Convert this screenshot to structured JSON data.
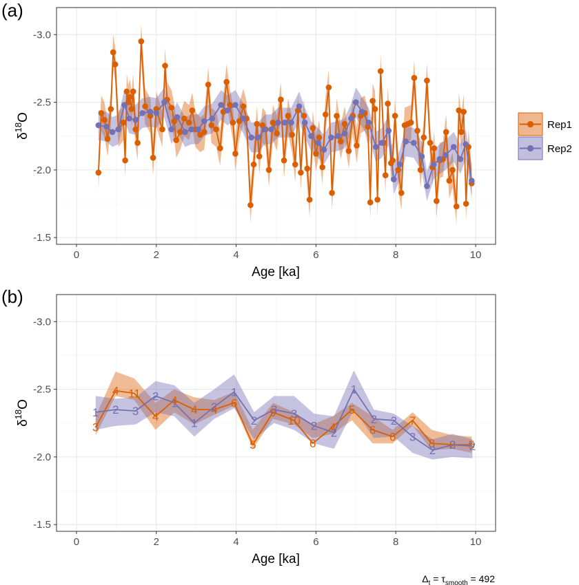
{
  "colors": {
    "Rep1": "#d95f02",
    "Rep2": "#7570b3"
  },
  "chart_data": [
    {
      "panel": "(a)",
      "type": "line",
      "xlabel": "Age [ka]",
      "ylabel_base": "δ",
      "ylabel_sup": "18",
      "ylabel_tail": "O",
      "xlim": [
        -0.5,
        10.5
      ],
      "ylim": [
        -1.45,
        -3.2
      ],
      "y_reversed": true,
      "xticks": [
        0,
        2,
        4,
        6,
        8,
        10
      ],
      "yticks": [
        -3.0,
        -2.5,
        -2.0,
        -1.5
      ],
      "ytick_labels": [
        "-3.0",
        "-2.5",
        "-2.0",
        "-1.5"
      ],
      "grid": true,
      "legend": "right",
      "series": [
        {
          "name": "Rep1",
          "band": 0.13,
          "points": [
            [
              0.55,
              -1.98
            ],
            [
              0.62,
              -2.42
            ],
            [
              0.7,
              -2.37
            ],
            [
              0.78,
              -2.23
            ],
            [
              0.86,
              -2.45
            ],
            [
              0.92,
              -2.87
            ],
            [
              0.97,
              -2.78
            ],
            [
              1.05,
              -2.3
            ],
            [
              1.18,
              -2.35
            ],
            [
              1.22,
              -2.07
            ],
            [
              1.26,
              -2.58
            ],
            [
              1.3,
              -2.5
            ],
            [
              1.34,
              -2.54
            ],
            [
              1.38,
              -2.45
            ],
            [
              1.42,
              -2.58
            ],
            [
              1.48,
              -2.3
            ],
            [
              1.53,
              -2.2
            ],
            [
              1.62,
              -2.95
            ],
            [
              1.72,
              -2.47
            ],
            [
              1.85,
              -2.4
            ],
            [
              1.92,
              -2.09
            ],
            [
              2.0,
              -2.45
            ],
            [
              2.15,
              -2.3
            ],
            [
              2.22,
              -2.77
            ],
            [
              2.27,
              -2.52
            ],
            [
              2.38,
              -2.46
            ],
            [
              2.45,
              -2.36
            ],
            [
              2.5,
              -2.22
            ],
            [
              2.6,
              -2.28
            ],
            [
              2.7,
              -2.38
            ],
            [
              2.82,
              -2.35
            ],
            [
              2.9,
              -2.44
            ],
            [
              2.98,
              -2.3
            ],
            [
              3.1,
              -2.26
            ],
            [
              3.2,
              -2.28
            ],
            [
              3.3,
              -2.63
            ],
            [
              3.38,
              -2.33
            ],
            [
              3.5,
              -2.3
            ],
            [
              3.6,
              -2.16
            ],
            [
              3.68,
              -2.43
            ],
            [
              3.76,
              -2.65
            ],
            [
              3.84,
              -2.48
            ],
            [
              3.92,
              -2.35
            ],
            [
              3.98,
              -2.12
            ],
            [
              4.08,
              -2.36
            ],
            [
              4.18,
              -2.47
            ],
            [
              4.26,
              -2.38
            ],
            [
              4.36,
              -1.74
            ],
            [
              4.44,
              -2.04
            ],
            [
              4.52,
              -2.34
            ],
            [
              4.58,
              -2.1
            ],
            [
              4.66,
              -2.33
            ],
            [
              4.74,
              -2.3
            ],
            [
              4.82,
              -2.0
            ],
            [
              4.92,
              -2.35
            ],
            [
              5.02,
              -2.27
            ],
            [
              5.12,
              -2.52
            ],
            [
              5.2,
              -2.07
            ],
            [
              5.3,
              -2.4
            ],
            [
              5.4,
              -2.26
            ],
            [
              5.48,
              -2.04
            ],
            [
              5.55,
              -2.44
            ],
            [
              5.62,
              -1.98
            ],
            [
              5.7,
              -2.4
            ],
            [
              5.78,
              -2.01
            ],
            [
              5.84,
              -1.78
            ],
            [
              5.92,
              -2.31
            ],
            [
              6.0,
              -2.12
            ],
            [
              6.08,
              -2.24
            ],
            [
              6.16,
              -2.02
            ],
            [
              6.24,
              -2.41
            ],
            [
              6.32,
              -2.61
            ],
            [
              6.4,
              -1.83
            ],
            [
              6.52,
              -2.4
            ],
            [
              6.62,
              -2.21
            ],
            [
              6.72,
              -2.34
            ],
            [
              6.82,
              -2.14
            ],
            [
              6.92,
              -2.4
            ],
            [
              7.02,
              -2.18
            ],
            [
              7.12,
              -2.4
            ],
            [
              7.22,
              -2.42
            ],
            [
              7.3,
              -2.32
            ],
            [
              7.36,
              -1.76
            ],
            [
              7.42,
              -2.51
            ],
            [
              7.48,
              -2.45
            ],
            [
              7.54,
              -1.78
            ],
            [
              7.62,
              -2.73
            ],
            [
              7.7,
              -2.2
            ],
            [
              7.74,
              -1.96
            ],
            [
              7.8,
              -2.49
            ],
            [
              7.88,
              -2.05
            ],
            [
              7.92,
              -2.07
            ],
            [
              7.98,
              -2.4
            ],
            [
              8.06,
              -2.0
            ],
            [
              8.14,
              -1.83
            ],
            [
              8.22,
              -2.33
            ],
            [
              8.3,
              -2.34
            ],
            [
              8.38,
              -2.35
            ],
            [
              8.46,
              -2.68
            ],
            [
              8.54,
              -2.29
            ],
            [
              8.62,
              -2.0
            ],
            [
              8.7,
              -2.24
            ],
            [
              8.78,
              -2.66
            ],
            [
              8.86,
              -2.2
            ],
            [
              8.92,
              -2.02
            ],
            [
              8.96,
              -2.16
            ],
            [
              9.02,
              -1.77
            ],
            [
              9.1,
              -2.07
            ],
            [
              9.18,
              -2.08
            ],
            [
              9.26,
              -2.28
            ],
            [
              9.34,
              -1.92
            ],
            [
              9.42,
              -2.0
            ],
            [
              9.52,
              -1.73
            ],
            [
              9.58,
              -2.44
            ],
            [
              9.64,
              -2.28
            ],
            [
              9.7,
              -2.43
            ],
            [
              9.76,
              -1.75
            ],
            [
              9.82,
              -2.17
            ],
            [
              9.9,
              -1.9
            ]
          ]
        },
        {
          "name": "Rep2",
          "band": 0.11,
          "points": [
            [
              0.55,
              -2.33
            ],
            [
              0.75,
              -2.32
            ],
            [
              0.9,
              -2.28
            ],
            [
              1.05,
              -2.3
            ],
            [
              1.2,
              -2.48
            ],
            [
              1.32,
              -2.38
            ],
            [
              1.48,
              -2.37
            ],
            [
              1.65,
              -2.42
            ],
            [
              1.85,
              -2.43
            ],
            [
              2.0,
              -2.42
            ],
            [
              2.2,
              -2.5
            ],
            [
              2.38,
              -2.3
            ],
            [
              2.52,
              -2.39
            ],
            [
              2.72,
              -2.28
            ],
            [
              2.88,
              -2.3
            ],
            [
              3.05,
              -2.3
            ],
            [
              3.2,
              -2.36
            ],
            [
              3.4,
              -2.38
            ],
            [
              3.62,
              -2.48
            ],
            [
              3.78,
              -2.44
            ],
            [
              3.98,
              -2.48
            ],
            [
              4.18,
              -2.38
            ],
            [
              4.38,
              -2.24
            ],
            [
              4.55,
              -2.24
            ],
            [
              4.72,
              -2.3
            ],
            [
              4.88,
              -2.3
            ],
            [
              5.05,
              -2.35
            ],
            [
              5.22,
              -2.35
            ],
            [
              5.38,
              -2.35
            ],
            [
              5.58,
              -2.47
            ],
            [
              5.72,
              -2.35
            ],
            [
              5.88,
              -2.25
            ],
            [
              6.05,
              -2.2
            ],
            [
              6.2,
              -2.15
            ],
            [
              6.38,
              -2.24
            ],
            [
              6.55,
              -2.25
            ],
            [
              6.72,
              -2.27
            ],
            [
              6.88,
              -2.38
            ],
            [
              7.0,
              -2.5
            ],
            [
              7.15,
              -2.43
            ],
            [
              7.32,
              -2.35
            ],
            [
              7.5,
              -2.17
            ],
            [
              7.65,
              -2.2
            ],
            [
              7.82,
              -2.29
            ],
            [
              7.95,
              -1.93
            ],
            [
              8.1,
              -2.04
            ],
            [
              8.25,
              -2.21
            ],
            [
              8.45,
              -2.2
            ],
            [
              8.65,
              -2.1
            ],
            [
              8.78,
              -1.88
            ],
            [
              8.95,
              -2.04
            ],
            [
              9.1,
              -2.08
            ],
            [
              9.25,
              -2.11
            ],
            [
              9.45,
              -2.17
            ],
            [
              9.62,
              -2.08
            ],
            [
              9.75,
              -2.19
            ],
            [
              9.9,
              -1.92
            ]
          ]
        }
      ]
    },
    {
      "panel": "(b)",
      "type": "line",
      "xlabel": "Age [ka]",
      "ylabel_base": "δ",
      "ylabel_sup": "18",
      "ylabel_tail": "O",
      "xlim": [
        -0.5,
        10.5
      ],
      "ylim": [
        -1.45,
        -3.2
      ],
      "y_reversed": true,
      "xticks": [
        0,
        2,
        4,
        6,
        8,
        10
      ],
      "yticks": [
        -3.0,
        -2.5,
        -2.0,
        -1.5
      ],
      "ytick_labels": [
        "-3.0",
        "-2.5",
        "-2.0",
        "-1.5"
      ],
      "grid": true,
      "note": "point markers are per-bin sample counts",
      "series": [
        {
          "name": "Rep1",
          "band_lo": [
            -2.16,
            -2.45,
            -2.42,
            -2.2,
            -2.33,
            -2.24,
            -2.31,
            -2.38,
            -2.06,
            -2.28,
            -2.24,
            -2.14,
            -2.17,
            -2.27,
            -2.1,
            -2.1,
            -2.23,
            -2.05,
            -2.06,
            -2.03
          ],
          "band_hi": [
            -2.3,
            -2.63,
            -2.58,
            -2.4,
            -2.5,
            -2.44,
            -2.42,
            -2.48,
            -2.2,
            -2.4,
            -2.33,
            -2.24,
            -2.3,
            -2.4,
            -2.3,
            -2.2,
            -2.33,
            -2.2,
            -2.16,
            -2.15
          ],
          "x": [
            0.48,
            0.98,
            1.45,
            1.98,
            2.45,
            2.95,
            3.45,
            3.95,
            4.42,
            4.92,
            5.45,
            5.92,
            6.42,
            6.9,
            7.42,
            7.92,
            8.42,
            8.9,
            9.42,
            9.9
          ],
          "y": [
            -2.22,
            -2.49,
            -2.47,
            -2.3,
            -2.42,
            -2.35,
            -2.35,
            -2.4,
            -2.09,
            -2.33,
            -2.27,
            -2.1,
            -2.22,
            -2.35,
            -2.2,
            -2.15,
            -2.27,
            -2.1,
            -2.09,
            -2.09
          ],
          "counts": [
            "3",
            "4",
            "11",
            "4",
            "4",
            "4",
            "4",
            "6",
            "5",
            "9",
            "10",
            "6",
            "4",
            "5",
            "6",
            "6",
            "7",
            "8",
            "8",
            "5"
          ]
        },
        {
          "name": "Rep2",
          "band_lo": [
            -2.2,
            -2.23,
            -2.24,
            -2.33,
            -2.3,
            -2.15,
            -2.28,
            -2.36,
            -2.13,
            -2.25,
            -2.2,
            -2.1,
            -2.06,
            -2.35,
            -2.14,
            -2.15,
            -2.03,
            -1.98,
            -2.0,
            -1.99
          ],
          "band_hi": [
            -2.45,
            -2.43,
            -2.44,
            -2.56,
            -2.53,
            -2.4,
            -2.5,
            -2.61,
            -2.33,
            -2.45,
            -2.45,
            -2.32,
            -2.3,
            -2.64,
            -2.35,
            -2.32,
            -2.23,
            -2.13,
            -2.17,
            -2.13
          ],
          "x": [
            0.48,
            0.98,
            1.48,
            1.98,
            2.45,
            2.95,
            3.45,
            3.95,
            4.45,
            4.95,
            5.45,
            5.95,
            6.45,
            6.95,
            7.45,
            7.95,
            8.42,
            8.92,
            9.42,
            9.92
          ],
          "y": [
            -2.33,
            -2.35,
            -2.34,
            -2.45,
            -2.4,
            -2.25,
            -2.37,
            -2.48,
            -2.27,
            -2.35,
            -2.32,
            -2.23,
            -2.18,
            -2.5,
            -2.28,
            -2.27,
            -2.15,
            -2.05,
            -2.09,
            -2.08
          ],
          "counts": [
            "1",
            "2",
            "3",
            "2",
            "1",
            "1",
            "2",
            "1",
            "2",
            "3",
            "3",
            "2",
            "2",
            "1",
            "2",
            "2",
            "3",
            "2",
            "2",
            "2"
          ]
        }
      ]
    }
  ],
  "legend": {
    "items": [
      {
        "label": "Rep1",
        "color_key": "Rep1"
      },
      {
        "label": "Rep2",
        "color_key": "Rep2"
      }
    ]
  },
  "footnote": {
    "delta": "Δ",
    "sub_t": "t",
    "eq1": " = τ",
    "sub_smooth": "smooth",
    "eq2": " = 492"
  }
}
